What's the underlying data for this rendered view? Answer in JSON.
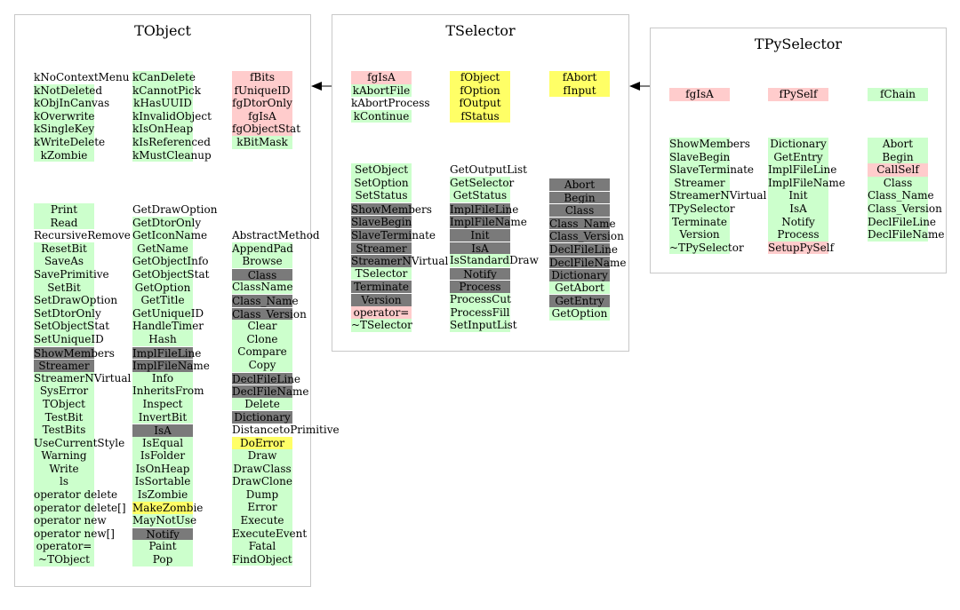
{
  "classes": {
    "tobject": {
      "title": "TObject",
      "enums": [
        [
          [
            "kNoContextMenu",
            "w"
          ],
          [
            "kNotDeleted",
            "g"
          ],
          [
            "kObjInCanvas",
            "g"
          ],
          [
            "kOverwrite",
            "g"
          ],
          [
            "kSingleKey",
            "g"
          ],
          [
            "kWriteDelete",
            "g"
          ],
          [
            "kZombie",
            "g"
          ]
        ],
        [
          [
            "kCanDelete",
            "g"
          ],
          [
            "kCannotPick",
            "g"
          ],
          [
            "kHasUUID",
            "g"
          ],
          [
            "kInvalidObject",
            "g"
          ],
          [
            "kIsOnHeap",
            "g"
          ],
          [
            "kIsReferenced",
            "g"
          ],
          [
            "kMustCleanup",
            "g"
          ]
        ],
        [
          [
            "fBits",
            "p"
          ],
          [
            "fUniqueID",
            "p"
          ],
          [
            "fgDtorOnly",
            "p"
          ],
          [
            "fgIsA",
            "p"
          ],
          [
            "fgObjectStat",
            "p"
          ],
          [
            "kBitMask",
            "g"
          ]
        ]
      ],
      "methods": [
        [
          [
            "Print",
            "g"
          ],
          [
            "Read",
            "g"
          ],
          [
            "RecursiveRemove",
            "w"
          ],
          [
            "ResetBit",
            "g"
          ],
          [
            "SaveAs",
            "g"
          ],
          [
            "SavePrimitive",
            "g"
          ],
          [
            "SetBit",
            "g"
          ],
          [
            "SetDrawOption",
            "g"
          ],
          [
            "SetDtorOnly",
            "g"
          ],
          [
            "SetObjectStat",
            "g"
          ],
          [
            "SetUniqueID",
            "g"
          ],
          [
            "ShowMembers",
            "d"
          ],
          [
            "Streamer",
            "d"
          ],
          [
            "StreamerNVirtual",
            "g"
          ],
          [
            "SysError",
            "g"
          ],
          [
            "TObject",
            "g"
          ],
          [
            "TestBit",
            "g"
          ],
          [
            "TestBits",
            "g"
          ],
          [
            "UseCurrentStyle",
            "g"
          ],
          [
            "Warning",
            "g"
          ],
          [
            "Write",
            "g"
          ],
          [
            "ls",
            "g"
          ],
          [
            "operator delete",
            "g"
          ],
          [
            "operator delete[]",
            "g"
          ],
          [
            "operator new",
            "g"
          ],
          [
            "operator new[]",
            "g"
          ],
          [
            "operator=",
            "g"
          ],
          [
            "~TObject",
            "g"
          ]
        ],
        [
          [
            "GetDrawOption",
            "w"
          ],
          [
            "GetDtorOnly",
            "g"
          ],
          [
            "GetIconName",
            "g"
          ],
          [
            "GetName",
            "g"
          ],
          [
            "GetObjectInfo",
            "g"
          ],
          [
            "GetObjectStat",
            "g"
          ],
          [
            "GetOption",
            "g"
          ],
          [
            "GetTitle",
            "g"
          ],
          [
            "GetUniqueID",
            "g"
          ],
          [
            "HandleTimer",
            "g"
          ],
          [
            "Hash",
            "g"
          ],
          [
            "ImplFileLine",
            "d"
          ],
          [
            "ImplFileName",
            "d"
          ],
          [
            "Info",
            "g"
          ],
          [
            "InheritsFrom",
            "g"
          ],
          [
            "Inspect",
            "g"
          ],
          [
            "InvertBit",
            "g"
          ],
          [
            "IsA",
            "d"
          ],
          [
            "IsEqual",
            "g"
          ],
          [
            "IsFolder",
            "g"
          ],
          [
            "IsOnHeap",
            "g"
          ],
          [
            "IsSortable",
            "g"
          ],
          [
            "IsZombie",
            "g"
          ],
          [
            "MakeZombie",
            "y"
          ],
          [
            "MayNotUse",
            "g"
          ],
          [
            "Notify",
            "d"
          ],
          [
            "Paint",
            "g"
          ],
          [
            "Pop",
            "g"
          ]
        ],
        [
          [
            "AbstractMethod",
            "w"
          ],
          [
            "AppendPad",
            "g"
          ],
          [
            "Browse",
            "g"
          ],
          [
            "Class",
            "d"
          ],
          [
            "ClassName",
            "g"
          ],
          [
            "Class_Name",
            "d"
          ],
          [
            "Class_Version",
            "d"
          ],
          [
            "Clear",
            "g"
          ],
          [
            "Clone",
            "g"
          ],
          [
            "Compare",
            "g"
          ],
          [
            "Copy",
            "g"
          ],
          [
            "DeclFileLine",
            "d"
          ],
          [
            "DeclFileName",
            "d"
          ],
          [
            "Delete",
            "g"
          ],
          [
            "Dictionary",
            "d"
          ],
          [
            "DistancetoPrimitive",
            "w"
          ],
          [
            "DoError",
            "y"
          ],
          [
            "Draw",
            "g"
          ],
          [
            "DrawClass",
            "g"
          ],
          [
            "DrawClone",
            "g"
          ],
          [
            "Dump",
            "g"
          ],
          [
            "Error",
            "g"
          ],
          [
            "Execute",
            "g"
          ],
          [
            "ExecuteEvent",
            "g"
          ],
          [
            "Fatal",
            "g"
          ],
          [
            "FindObject",
            "g"
          ]
        ]
      ]
    },
    "tselector": {
      "title": "TSelector",
      "enums": [
        [
          [
            "fgIsA",
            "p"
          ],
          [
            "kAbortFile",
            "g"
          ],
          [
            "kAbortProcess",
            "w"
          ],
          [
            "kContinue",
            "g"
          ]
        ],
        [
          [
            "fObject",
            "y"
          ],
          [
            "fOption",
            "y"
          ],
          [
            "fOutput",
            "y"
          ],
          [
            "fStatus",
            "y"
          ]
        ],
        [
          [
            "fAbort",
            "y"
          ],
          [
            "fInput",
            "y"
          ]
        ]
      ],
      "methods": [
        [
          [
            "SetObject",
            "g"
          ],
          [
            "SetOption",
            "g"
          ],
          [
            "SetStatus",
            "g"
          ],
          [
            "ShowMembers",
            "d"
          ],
          [
            "SlaveBegin",
            "d"
          ],
          [
            "SlaveTerminate",
            "d"
          ],
          [
            "Streamer",
            "d"
          ],
          [
            "StreamerNVirtual",
            "d"
          ],
          [
            "TSelector",
            "g"
          ],
          [
            "Terminate",
            "d"
          ],
          [
            "Version",
            "d"
          ],
          [
            "operator=",
            "p"
          ],
          [
            "~TSelector",
            "g"
          ]
        ],
        [
          [
            "GetOutputList",
            "w"
          ],
          [
            "GetSelector",
            "g"
          ],
          [
            "GetStatus",
            "g"
          ],
          [
            "ImplFileLine",
            "d"
          ],
          [
            "ImplFileName",
            "d"
          ],
          [
            "Init",
            "d"
          ],
          [
            "IsA",
            "d"
          ],
          [
            "IsStandardDraw",
            "g"
          ],
          [
            "Notify",
            "d"
          ],
          [
            "Process",
            "d"
          ],
          [
            "ProcessCut",
            "g"
          ],
          [
            "ProcessFill",
            "g"
          ],
          [
            "SetInputList",
            "g"
          ]
        ],
        [
          [
            "Abort",
            "d"
          ],
          [
            "Begin",
            "d"
          ],
          [
            "Class",
            "d"
          ],
          [
            "Class_Name",
            "d"
          ],
          [
            "Class_Version",
            "d"
          ],
          [
            "DeclFileLine",
            "d"
          ],
          [
            "DeclFileName",
            "d"
          ],
          [
            "Dictionary",
            "d"
          ],
          [
            "GetAbort",
            "g"
          ],
          [
            "GetEntry",
            "d"
          ],
          [
            "GetOption",
            "g"
          ]
        ]
      ]
    },
    "tpyselector": {
      "title": "TPySelector",
      "enums": [
        [
          [
            "fgIsA",
            "p"
          ]
        ],
        [
          [
            "fPySelf",
            "p"
          ]
        ],
        [
          [
            "fChain",
            "g"
          ]
        ]
      ],
      "methods": [
        [
          [
            "ShowMembers",
            "g"
          ],
          [
            "SlaveBegin",
            "g"
          ],
          [
            "SlaveTerminate",
            "g"
          ],
          [
            "Streamer",
            "g"
          ],
          [
            "StreamerNVirtual",
            "g"
          ],
          [
            "TPySelector",
            "g"
          ],
          [
            "Terminate",
            "g"
          ],
          [
            "Version",
            "g"
          ],
          [
            "~TPySelector",
            "g"
          ]
        ],
        [
          [
            "Dictionary",
            "g"
          ],
          [
            "GetEntry",
            "g"
          ],
          [
            "ImplFileLine",
            "g"
          ],
          [
            "ImplFileName",
            "g"
          ],
          [
            "Init",
            "g"
          ],
          [
            "IsA",
            "g"
          ],
          [
            "Notify",
            "g"
          ],
          [
            "Process",
            "g"
          ],
          [
            "SetupPySelf",
            "p"
          ]
        ],
        [
          [
            "Abort",
            "g"
          ],
          [
            "Begin",
            "g"
          ],
          [
            "CallSelf",
            "p"
          ],
          [
            "Class",
            "g"
          ],
          [
            "Class_Name",
            "g"
          ],
          [
            "Class_Version",
            "g"
          ],
          [
            "DeclFileLine",
            "g"
          ],
          [
            "DeclFileName",
            "g"
          ]
        ]
      ]
    }
  },
  "colors": {
    "public_method": "#ccffcc",
    "private_member": "#ffcccc",
    "protected_member": "#ffff66",
    "inherited_overridden": "#7a7a7a",
    "box_border": "#c8c8c8"
  }
}
